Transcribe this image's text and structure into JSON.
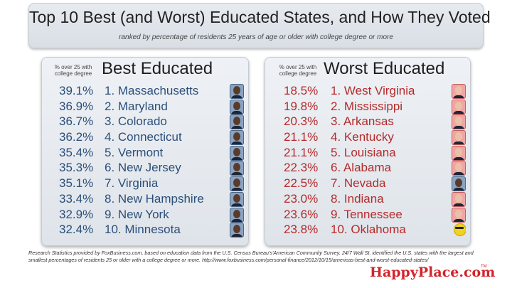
{
  "title": "Top 10 Best (and Worst) Educated States, and How They Voted",
  "subtitle": "ranked by percentage of residents 25 years of age or older with college degree or more",
  "best": {
    "column_note": "% over 25 with college degree",
    "heading": "Best Educated",
    "color": "#2b4f7a",
    "rows": [
      {
        "pct": "39.1%",
        "state": "1. Massachusetts",
        "icon": "obama-portrait-icon"
      },
      {
        "pct": "36.9%",
        "state": "2. Maryland",
        "icon": "obama-portrait-icon"
      },
      {
        "pct": "36.7%",
        "state": "3. Colorado",
        "icon": "obama-portrait-icon"
      },
      {
        "pct": "36.2%",
        "state": "4. Connecticut",
        "icon": "obama-portrait-icon"
      },
      {
        "pct": "35.4%",
        "state": "5. Vermont",
        "icon": "obama-portrait-icon"
      },
      {
        "pct": "35.3%",
        "state": "6. New Jersey",
        "icon": "obama-portrait-icon"
      },
      {
        "pct": "35.1%",
        "state": "7. Virginia",
        "icon": "obama-portrait-icon"
      },
      {
        "pct": "33.4%",
        "state": "8. New Hampshire",
        "icon": "obama-portrait-icon"
      },
      {
        "pct": "32.9%",
        "state": "9. New York",
        "icon": "obama-portrait-icon"
      },
      {
        "pct": "32.4%",
        "state": "10. Minnesota",
        "icon": "obama-portrait-icon"
      }
    ]
  },
  "worst": {
    "column_note": "% over 25 with college degree",
    "heading": "Worst Educated",
    "color": "#b42a2a",
    "rows": [
      {
        "pct": "18.5%",
        "state": "1. West Virginia",
        "icon": "romney-portrait-icon"
      },
      {
        "pct": "19.8%",
        "state": "2. Mississippi",
        "icon": "romney-portrait-icon"
      },
      {
        "pct": "20.3%",
        "state": "3. Arkansas",
        "icon": "romney-portrait-icon"
      },
      {
        "pct": "21.1%",
        "state": "4. Kentucky",
        "icon": "romney-portrait-icon"
      },
      {
        "pct": "21.1%",
        "state": "5. Louisiana",
        "icon": "romney-portrait-icon"
      },
      {
        "pct": "22.3%",
        "state": "6. Alabama",
        "icon": "romney-portrait-icon"
      },
      {
        "pct": "22.5%",
        "state": "7. Nevada",
        "icon": "obama-portrait-icon"
      },
      {
        "pct": "23.0%",
        "state": "8. Indiana",
        "icon": "romney-portrait-icon"
      },
      {
        "pct": "23.6%",
        "state": "9. Tennessee",
        "icon": "romney-portrait-icon"
      },
      {
        "pct": "23.8%",
        "state": "10. Oklahoma",
        "icon": "sunglasses-smiley-icon"
      }
    ]
  },
  "footer": "Research Statistics provided by FoxBusiness.com, based on education data from the U.S. Census Bureau's'American Community Survey. 24/7 Wall St. identified the U.S. states with the largest and smallest percentages of residents 25 or older with a college degree or more. http://www.foxbusiness.com/personal-finance/2012/10/15/americas-best-and-worst-educated-states/",
  "brand": "HappyPlace.com",
  "brand_tm": "TM",
  "colors": {
    "brand": "#d2232a",
    "best_text": "#2b4f7a",
    "worst_text": "#b42a2a"
  }
}
